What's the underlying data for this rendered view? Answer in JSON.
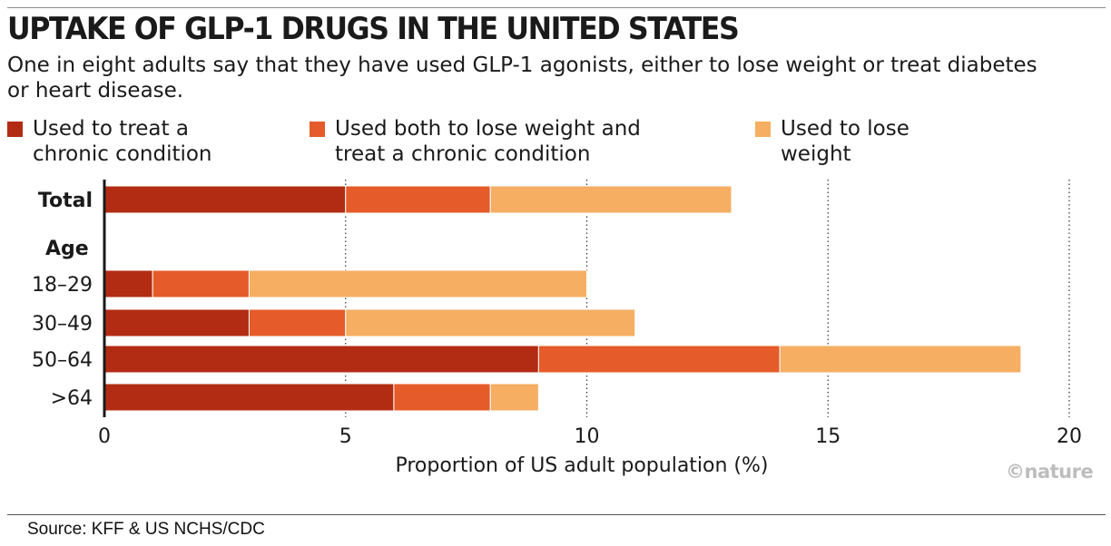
{
  "header": {
    "title": "UPTAKE OF GLP-1 DRUGS IN THE UNITED STATES",
    "subtitle": "One in eight adults say that they have used GLP-1 agonists, either to lose weight or treat diabetes or heart disease."
  },
  "legend": [
    {
      "line1": "Used to treat a",
      "line2": "chronic condition",
      "color": "#B22C14"
    },
    {
      "line1": "Used both to lose weight and",
      "line2": "treat a chronic condition",
      "color": "#E55C2A"
    },
    {
      "line1": "Used to lose",
      "line2": "weight",
      "color": "#F5AE62"
    }
  ],
  "chart_data": {
    "type": "bar",
    "orientation": "horizontal",
    "stacked": true,
    "title": "UPTAKE OF GLP-1 DRUGS IN THE UNITED STATES",
    "xlabel": "Proportion of US adult population (%)",
    "ylabel": "",
    "xlim": [
      0,
      20
    ],
    "xticks": [
      0,
      5,
      10,
      15,
      20
    ],
    "grid": "vertical dotted",
    "group_label": "Age",
    "categories": [
      "Total",
      "18–29",
      "30–49",
      "50–64",
      ">64"
    ],
    "category_bold": [
      true,
      false,
      false,
      false,
      false
    ],
    "series": [
      {
        "name": "Used to treat a chronic condition",
        "color": "#B22C14",
        "values": [
          5,
          1,
          3,
          9,
          6
        ]
      },
      {
        "name": "Used both to lose weight and treat a chronic condition",
        "color": "#E55C2A",
        "values": [
          3,
          2,
          2,
          5,
          2
        ]
      },
      {
        "name": "Used to lose weight",
        "color": "#F5AE62",
        "values": [
          5,
          7,
          6,
          5,
          1
        ]
      }
    ]
  },
  "branding": "©nature",
  "source": "Source: KFF & US NCHS/CDC",
  "colors": {
    "axis": "#1a1a1a",
    "grid": "#333333",
    "separator": "#ffffff"
  }
}
